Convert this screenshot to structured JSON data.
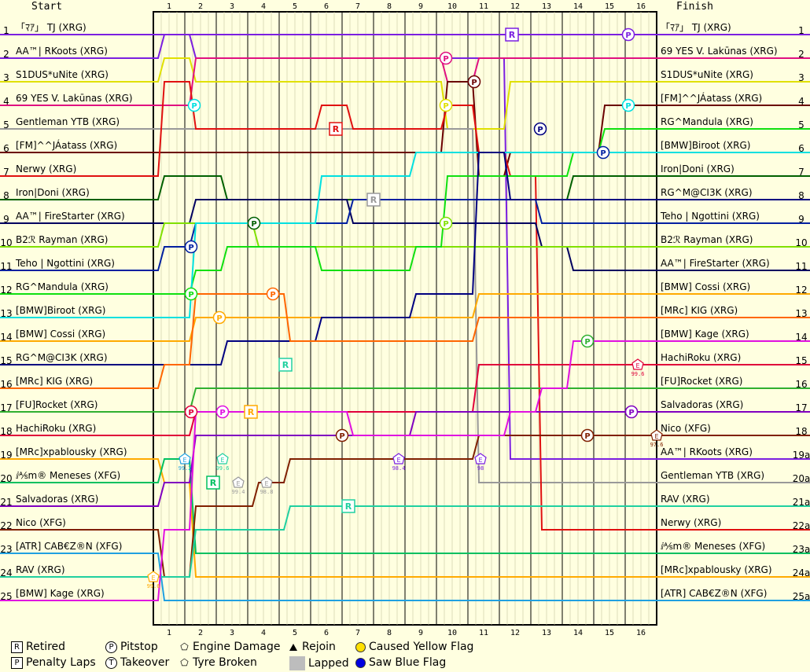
{
  "chart_data": {
    "type": "line",
    "start_label": "Start",
    "finish_label": "Finish",
    "laps": [
      1,
      2,
      3,
      4,
      5,
      6,
      7,
      8,
      9,
      10,
      11,
      12,
      13,
      14,
      15,
      16
    ],
    "position_labels_left": [
      "1",
      "2",
      "3",
      "4",
      "5",
      "6",
      "7",
      "8",
      "9",
      "10",
      "11",
      "12",
      "13",
      "14",
      "15",
      "16",
      "17",
      "18",
      "19",
      "20",
      "21",
      "22",
      "23",
      "24",
      "25"
    ],
    "position_labels_right": [
      "1",
      "2",
      "3",
      "4",
      "5",
      "6",
      "7",
      "8",
      "9",
      "10",
      "11",
      "12",
      "13",
      "14",
      "15",
      "16",
      "17",
      "18",
      "19a",
      "20a",
      "21a",
      "22a",
      "23a",
      "24a",
      "25a"
    ],
    "start_names": [
      "「ﾏｱ」 TJ (XRG)",
      "AA™| RKoots (XRG)",
      "S1DUS*uNite (XRG)",
      "69 YES V. Lakūnas (XRG)",
      "Gentleman YTB (XRG)",
      "[FM]^^JÁatass (XRG)",
      "Nerwy (XRG)",
      "Iron|Doni (XRG)",
      "AA™| FireStarter (XRG)",
      "B2ℛ Rayman (XRG)",
      "Teho | Ngottini (XRG)",
      "RG^Mandula (XRG)",
      "[BMW]Biroot (XRG)",
      "[BMW] Cossi (XRG)",
      "RG^M@CI3K (XRG)",
      "[MRc] KIG (XRG)",
      "[FU]Rocket (XRG)",
      "HachiRoku (XRG)",
      "[MRc]xpablousky (XRG)",
      "ⅈ⅍m® Meneses (XFG)",
      "Salvadoras (XRG)",
      "Nico (XFG)",
      "[ATR] CAB€Z®N (XFG)",
      "RAV (XRG)",
      "[BMW] Kage (XRG)"
    ],
    "finish_names": [
      "「ﾏｱ」 TJ (XRG)",
      "69 YES V. Lakūnas (XRG)",
      "S1DUS*uNite (XRG)",
      "[FM]^^JÁatass (XRG)",
      "RG^Mandula (XRG)",
      "[BMW]Biroot (XRG)",
      "Iron|Doni (XRG)",
      "RG^M@CI3K (XRG)",
      "Teho | Ngottini (XRG)",
      "B2ℛ Rayman (XRG)",
      "AA™| FireStarter (XRG)",
      "[BMW] Cossi (XRG)",
      "[MRc] KIG (XRG)",
      "[BMW] Kage (XRG)",
      "HachiRoku (XRG)",
      "[FU]Rocket (XRG)",
      "Salvadoras (XRG)",
      "Nico (XFG)",
      "AA™| RKoots (XRG)",
      "Gentleman YTB (XRG)",
      "RAV (XRG)",
      "Nerwy (XRG)",
      "ⅈ⅍m® Meneses (XFG)",
      "[MRc]xpablousky (XRG)",
      "[ATR] CAB€Z®N (XFG)"
    ],
    "series": [
      {
        "name": "「ﾏｱ」 TJ (XRG)",
        "color": "#7b1fe0",
        "positions": [
          1,
          1,
          1,
          1,
          1,
          1,
          1,
          1,
          1,
          1,
          1,
          1,
          1,
          1,
          1,
          1,
          1
        ]
      },
      {
        "name": "AA™| RKoots (XRG)",
        "color": "#7b1fe0",
        "positions": [
          2,
          1,
          2,
          2,
          2,
          2,
          2,
          2,
          2,
          2,
          2,
          2,
          19,
          19,
          19,
          19,
          19
        ]
      },
      {
        "name": "S1DUS*uNite (XRG)",
        "color": "#e0e000",
        "positions": [
          3,
          2,
          3,
          3,
          3,
          3,
          3,
          3,
          3,
          3,
          5,
          5,
          3,
          3,
          3,
          3,
          3
        ]
      },
      {
        "name": "69 YES V. Lakūnas (XRG)",
        "color": "#e01080",
        "positions": [
          4,
          4,
          2,
          2,
          2,
          2,
          2,
          2,
          2,
          2,
          3,
          2,
          2,
          2,
          2,
          2,
          2
        ]
      },
      {
        "name": "Gentleman YTB (XRG)",
        "color": "#999999",
        "positions": [
          5,
          5,
          5,
          5,
          5,
          5,
          5,
          5,
          5,
          5,
          5,
          20,
          20,
          20,
          20,
          20,
          20
        ]
      },
      {
        "name": "[FM]^^JÁatass (XRG)",
        "color": "#6b0000",
        "positions": [
          6,
          6,
          6,
          6,
          6,
          6,
          6,
          6,
          6,
          6,
          3,
          7,
          6,
          6,
          6,
          4,
          4
        ]
      },
      {
        "name": "Nerwy (XRG)",
        "color": "#e01010",
        "positions": [
          7,
          3,
          5,
          5,
          5,
          5,
          4,
          5,
          5,
          5,
          4,
          6,
          7,
          22,
          22,
          22,
          22
        ]
      },
      {
        "name": "Iron|Doni (XRG)",
        "color": "#006000",
        "positions": [
          8,
          7,
          7,
          8,
          8,
          8,
          8,
          8,
          8,
          8,
          8,
          8,
          8,
          8,
          7,
          7,
          7
        ]
      },
      {
        "name": "AA™| FireStarter (XRG)",
        "color": "#000060",
        "positions": [
          9,
          9,
          8,
          8,
          8,
          8,
          8,
          9,
          9,
          9,
          9,
          9,
          9,
          10,
          11,
          11,
          11
        ]
      },
      {
        "name": "B2ℛ Rayman (XRG)",
        "color": "#80e000",
        "positions": [
          10,
          9,
          9,
          9,
          10,
          10,
          10,
          10,
          10,
          10,
          10,
          10,
          10,
          10,
          10,
          10,
          10
        ]
      },
      {
        "name": "Teho | Ngottini (XRG)",
        "color": "#0020a0",
        "positions": [
          11,
          10,
          9,
          9,
          9,
          9,
          9,
          8,
          8,
          8,
          8,
          8,
          8,
          9,
          9,
          9,
          9
        ]
      },
      {
        "name": "RG^Mandula (XRG)",
        "color": "#10e010",
        "positions": [
          12,
          12,
          11,
          10,
          10,
          10,
          11,
          11,
          11,
          10,
          7,
          7,
          7,
          7,
          6,
          5,
          5
        ]
      },
      {
        "name": "[BMW]Biroot (XRG)",
        "color": "#00e0e0",
        "positions": [
          13,
          13,
          9,
          9,
          9,
          9,
          7,
          7,
          7,
          6,
          6,
          6,
          6,
          6,
          6,
          6,
          6
        ]
      },
      {
        "name": "[BMW] Cossi (XRG)",
        "color": "#ffaa00",
        "positions": [
          14,
          14,
          13,
          13,
          13,
          13,
          13,
          13,
          13,
          13,
          13,
          12,
          12,
          12,
          12,
          12,
          12
        ]
      },
      {
        "name": "RG^M@CI3K (XRG)",
        "color": "#000080",
        "positions": [
          15,
          15,
          15,
          14,
          14,
          14,
          13,
          13,
          13,
          12,
          12,
          6,
          8,
          8,
          8,
          8,
          8
        ]
      },
      {
        "name": "[MRc] KIG (XRG)",
        "color": "#ff6600",
        "positions": [
          16,
          15,
          12,
          12,
          12,
          14,
          14,
          14,
          14,
          14,
          14,
          13,
          13,
          13,
          13,
          13,
          13
        ]
      },
      {
        "name": "[FU]Rocket (XRG)",
        "color": "#30b030",
        "positions": [
          17,
          17,
          16,
          16,
          16,
          16,
          16,
          16,
          16,
          16,
          16,
          16,
          16,
          16,
          16,
          16,
          16
        ]
      },
      {
        "name": "HachiRoku (XRG)",
        "color": "#e0003a",
        "positions": [
          18,
          18,
          17,
          17,
          17,
          17,
          17,
          17,
          17,
          17,
          17,
          15,
          15,
          15,
          15,
          15,
          15
        ]
      },
      {
        "name": "[MRc]xpablousky (XRG)",
        "color": "#ffaa00",
        "positions": [
          19,
          20,
          24,
          24,
          24,
          24,
          24,
          24,
          24,
          24,
          24,
          24,
          24,
          24,
          24,
          24,
          24
        ]
      },
      {
        "name": "ⅈ⅍m® Meneses (XFG)",
        "color": "#00c060",
        "positions": [
          20,
          19,
          23,
          23,
          23,
          23,
          23,
          23,
          23,
          23,
          23,
          23,
          23,
          23,
          23,
          23,
          23
        ]
      },
      {
        "name": "Salvadoras (XRG)",
        "color": "#8000c0",
        "positions": [
          21,
          20,
          18,
          18,
          18,
          18,
          18,
          18,
          18,
          17,
          17,
          17,
          17,
          17,
          17,
          17,
          17
        ]
      },
      {
        "name": "Nico (XFG)",
        "color": "#802000",
        "positions": [
          22,
          24,
          21,
          21,
          20,
          19,
          19,
          19,
          19,
          19,
          19,
          18,
          18,
          18,
          18,
          18,
          18
        ]
      },
      {
        "name": "[ATR] CAB€Z®N (XFG)",
        "color": "#20a0e0",
        "positions": [
          23,
          25,
          25,
          25,
          25,
          25,
          25,
          25,
          25,
          25,
          25,
          25,
          25,
          25,
          25,
          25,
          25
        ]
      },
      {
        "name": "RAV (XRG)",
        "color": "#20d0a0",
        "positions": [
          24,
          24,
          22,
          22,
          22,
          21,
          21,
          21,
          21,
          21,
          21,
          21,
          21,
          21,
          21,
          21,
          21
        ]
      },
      {
        "name": "[BMW] Kage (XRG)",
        "color": "#e010e0",
        "positions": [
          25,
          22,
          17,
          17,
          17,
          17,
          17,
          18,
          18,
          18,
          18,
          18,
          17,
          16,
          14,
          14,
          14
        ]
      }
    ],
    "legend": [
      {
        "symbol": "R",
        "shape": "box",
        "label": "Retired"
      },
      {
        "symbol": "P",
        "shape": "circle",
        "label": "Pitstop"
      },
      {
        "symbol": "E",
        "shape": "pentagon",
        "label": "Engine Damage"
      },
      {
        "symbol": "▲",
        "shape": "triangle",
        "label": "Rejoin"
      },
      {
        "symbol": "",
        "shape": "yellow-dot",
        "color": "#ffe000",
        "label": "Caused Yellow Flag"
      },
      {
        "symbol": "P",
        "shape": "box",
        "label": "Penalty Laps"
      },
      {
        "symbol": "T",
        "shape": "circle",
        "label": "Takeover"
      },
      {
        "symbol": "T",
        "shape": "pentagon",
        "label": "Tyre Broken"
      },
      {
        "symbol": "",
        "shape": "gray-box",
        "color": "#bdbdbd",
        "label": "Lapped"
      },
      {
        "symbol": "",
        "shape": "blue-dot",
        "color": "#0000e0",
        "label": "Saw Blue Flag"
      }
    ],
    "events": [
      {
        "type": "R",
        "lap": 11.4,
        "pos": 1,
        "series": "「ﾏｱ」 TJ (XRG)"
      },
      {
        "type": "P",
        "lap": 15.1,
        "pos": 1,
        "series": "「ﾏｱ」 TJ (XRG)"
      },
      {
        "type": "P",
        "lap": 9.3,
        "pos": 2,
        "series": "69 YES V. Lakūnas (XRG)"
      },
      {
        "type": "P",
        "lap": 10.2,
        "pos": 3,
        "series": "[FM]^^JÁatass (XRG)"
      },
      {
        "type": "P",
        "lap": 1.3,
        "pos": 4,
        "series": "[BMW]Biroot (XRG)"
      },
      {
        "type": "P",
        "lap": 9.3,
        "pos": 4,
        "series": "S1DUS*uNite (XRG)"
      },
      {
        "type": "P",
        "lap": 15.1,
        "pos": 4,
        "series": "[BMW]Biroot (XRG)"
      },
      {
        "type": "R",
        "lap": 5.8,
        "pos": 5,
        "series": "Nerwy (XRG)"
      },
      {
        "type": "P",
        "lap": 12.3,
        "pos": 5,
        "series": "RG^M@CI3K (XRG)"
      },
      {
        "type": "P",
        "lap": 14.3,
        "pos": 6,
        "series": "Teho | Ngottini (XRG)"
      },
      {
        "type": "R",
        "lap": 7.0,
        "pos": 8,
        "series": "Gentleman YTB (XRG)"
      },
      {
        "type": "P",
        "lap": 3.2,
        "pos": 9,
        "series": "Iron|Doni (XRG)"
      },
      {
        "type": "P",
        "lap": 9.3,
        "pos": 9,
        "series": "B2ℛ Rayman (XRG)"
      },
      {
        "type": "P",
        "lap": 1.2,
        "pos": 10,
        "series": "Teho | Ngottini (XRG)"
      },
      {
        "type": "P",
        "lap": 1.2,
        "pos": 12,
        "series": "RG^Mandula (XRG)"
      },
      {
        "type": "P",
        "lap": 3.8,
        "pos": 12,
        "series": "[MRc] KIG (XRG)"
      },
      {
        "type": "P",
        "lap": 2.1,
        "pos": 13,
        "series": "[BMW] Cossi (XRG)"
      },
      {
        "type": "P",
        "lap": 13.8,
        "pos": 14,
        "series": "[FU]Rocket (XRG)"
      },
      {
        "type": "R",
        "lap": 4.2,
        "pos": 15,
        "series": "RAV (XRG)"
      },
      {
        "type": "E",
        "lap": 15.4,
        "pos": 15,
        "series": "HachiRoku (XRG)",
        "note": "99.6"
      },
      {
        "type": "P",
        "lap": 1.2,
        "pos": 17,
        "series": "HachiRoku (XRG)"
      },
      {
        "type": "P",
        "lap": 2.2,
        "pos": 17,
        "series": "[BMW] Kage (XRG)"
      },
      {
        "type": "R",
        "lap": 3.1,
        "pos": 17,
        "series": "[MRc]xpablousky (XRG)"
      },
      {
        "type": "P",
        "lap": 15.2,
        "pos": 17,
        "series": "Salvadoras (XRG)"
      },
      {
        "type": "P",
        "lap": 6.0,
        "pos": 18,
        "series": "Nico (XFG)"
      },
      {
        "type": "P",
        "lap": 13.8,
        "pos": 18,
        "series": "Nico (XFG)"
      },
      {
        "type": "E",
        "lap": 16.0,
        "pos": 18,
        "series": "Nico (XFG)",
        "note": "97.6"
      },
      {
        "type": "E",
        "lap": 1.0,
        "pos": 19,
        "series": "[ATR] CAB€Z®N (XFG)",
        "note": "99.2"
      },
      {
        "type": "E",
        "lap": 2.2,
        "pos": 19,
        "series": "RAV (XRG)",
        "note": "99.6"
      },
      {
        "type": "E",
        "lap": 7.8,
        "pos": 19,
        "series": "AA™| RKoots (XRG)",
        "note": "98.4"
      },
      {
        "type": "E",
        "lap": 10.4,
        "pos": 19,
        "series": "AA™| RKoots (XRG)",
        "note": "98"
      },
      {
        "type": "R",
        "lap": 1.9,
        "pos": 20,
        "series": "ⅈ⅍m® Meneses (XFG)"
      },
      {
        "type": "E",
        "lap": 2.7,
        "pos": 20,
        "series": "Gentleman YTB (XRG)",
        "note": "99.4"
      },
      {
        "type": "E",
        "lap": 3.6,
        "pos": 20,
        "series": "Gentleman YTB (XRG)",
        "note": "98.8"
      },
      {
        "type": "R",
        "lap": 6.2,
        "pos": 21,
        "series": "RAV (XRG)"
      },
      {
        "type": "E",
        "lap": 0.0,
        "pos": 24,
        "series": "[MRc]xpablousky (XRG)",
        "note": "99.6"
      }
    ]
  }
}
